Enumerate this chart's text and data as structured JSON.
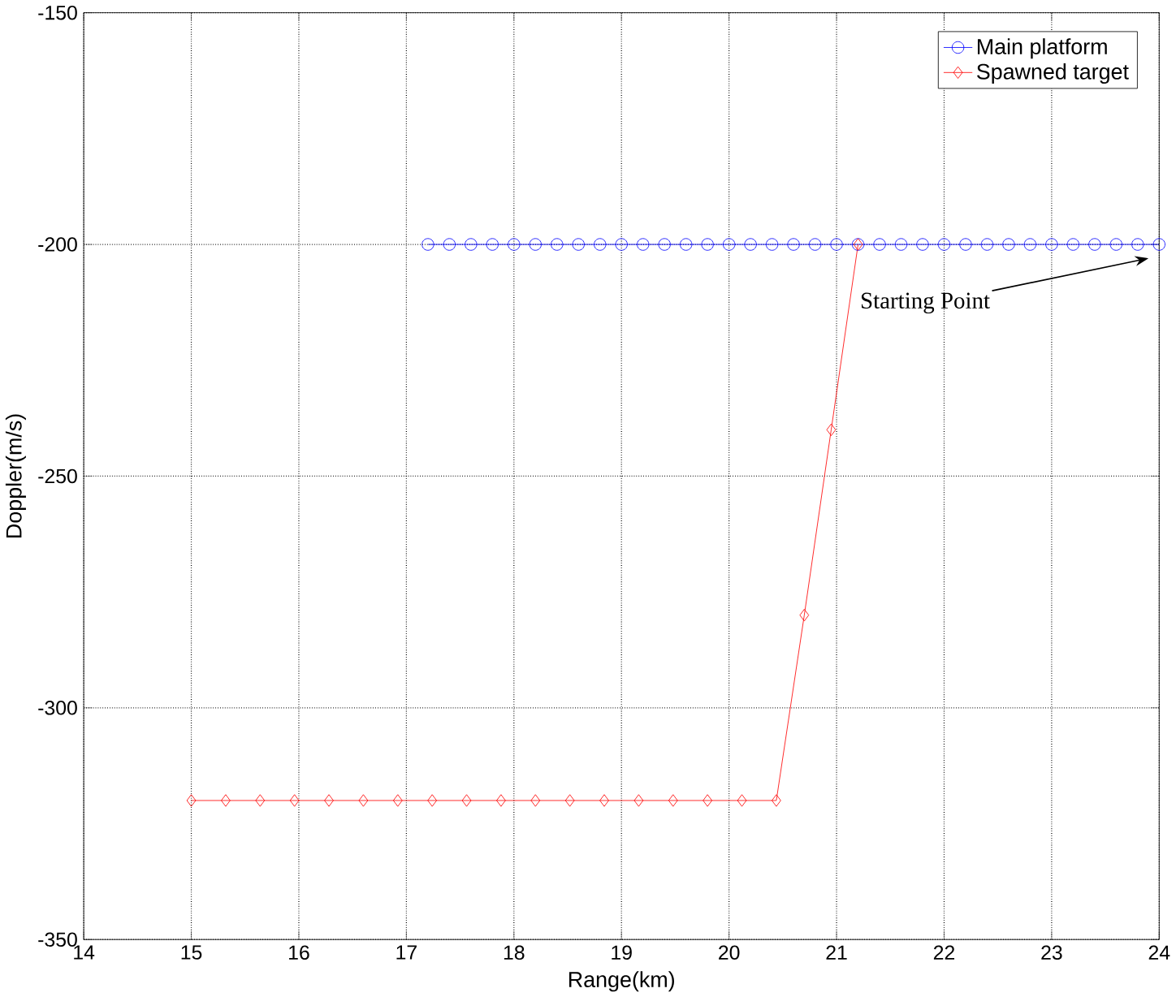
{
  "chart_data": {
    "type": "line",
    "xlabel": "Range(km)",
    "ylabel": "Doppler(m/s)",
    "xlim": [
      14,
      24
    ],
    "ylim": [
      -350,
      -150
    ],
    "xticks": [
      14,
      15,
      16,
      17,
      18,
      19,
      20,
      21,
      22,
      23,
      24
    ],
    "yticks": [
      -350,
      -300,
      -250,
      -200,
      -150
    ],
    "grid": true,
    "legend": "top right",
    "annotations": [
      "Starting Point"
    ],
    "series": [
      {
        "name": "Main platform",
        "color": "#0000ff",
        "marker": "circle",
        "x": [
          17.2,
          17.4,
          17.6,
          17.8,
          18.0,
          18.2,
          18.4,
          18.6,
          18.8,
          19.0,
          19.2,
          19.4,
          19.6,
          19.8,
          20.0,
          20.2,
          20.4,
          20.6,
          20.8,
          21.0,
          21.2,
          21.4,
          21.6,
          21.8,
          22.0,
          22.2,
          22.4,
          22.6,
          22.8,
          23.0,
          23.2,
          23.4,
          23.6,
          23.8,
          24.0
        ],
        "values": [
          -200,
          -200,
          -200,
          -200,
          -200,
          -200,
          -200,
          -200,
          -200,
          -200,
          -200,
          -200,
          -200,
          -200,
          -200,
          -200,
          -200,
          -200,
          -200,
          -200,
          -200,
          -200,
          -200,
          -200,
          -200,
          -200,
          -200,
          -200,
          -200,
          -200,
          -200,
          -200,
          -200,
          -200,
          -200
        ]
      },
      {
        "name": "Spawned target",
        "color": "#ff0000",
        "marker": "diamond",
        "x": [
          15.0,
          15.32,
          15.64,
          15.96,
          16.28,
          16.6,
          16.92,
          17.24,
          17.56,
          17.88,
          18.2,
          18.52,
          18.84,
          19.16,
          19.48,
          19.8,
          20.12,
          20.44,
          20.7,
          20.95,
          21.2
        ],
        "values": [
          -320,
          -320,
          -320,
          -320,
          -320,
          -320,
          -320,
          -320,
          -320,
          -320,
          -320,
          -320,
          -320,
          -320,
          -320,
          -320,
          -320,
          -320,
          -280,
          -240,
          -200
        ]
      }
    ]
  }
}
